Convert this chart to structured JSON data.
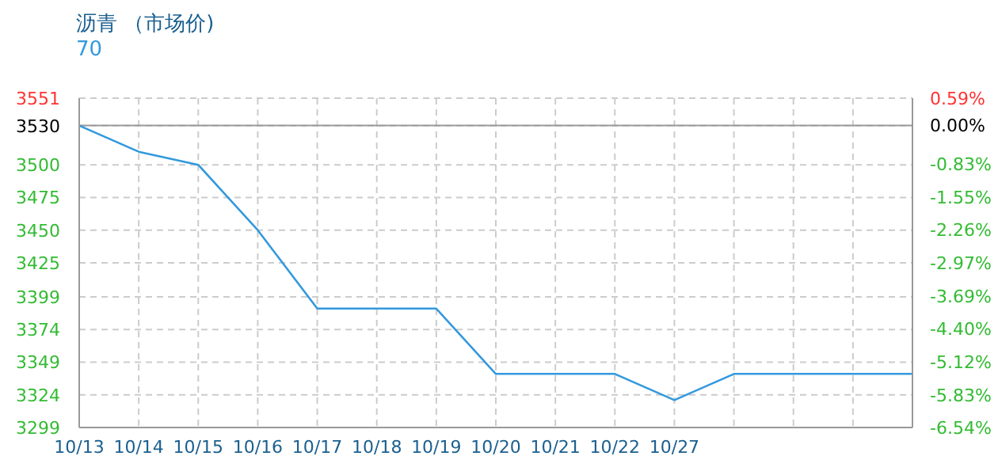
{
  "chart_data": {
    "type": "line",
    "title": "沥青 （市场价)",
    "categories": [
      "10/13",
      "10/14",
      "10/15",
      "10/16",
      "10/17",
      "10/18",
      "10/19",
      "10/20",
      "10/21",
      "10/22",
      "10/27",
      null,
      null,
      null,
      null
    ],
    "series": [
      {
        "name": "70",
        "color": "#3399dd",
        "values": [
          3530,
          3510,
          3500,
          3450,
          3390,
          3390,
          3390,
          3340,
          3340,
          3340,
          3320,
          3340,
          3340,
          3340,
          3340
        ]
      }
    ],
    "ylim": [
      3299,
      3551
    ],
    "yticks": [
      3299,
      3324,
      3349,
      3374,
      3399,
      3425,
      3450,
      3475,
      3500,
      3530,
      3551
    ],
    "y2lim": [
      -6.54,
      0.59
    ],
    "y2ticks": [
      {
        "value": -6.54,
        "label": "-6.54%"
      },
      {
        "value": -5.83,
        "label": "-5.83%"
      },
      {
        "value": -5.12,
        "label": "-5.12%"
      },
      {
        "value": -4.4,
        "label": "-4.40%"
      },
      {
        "value": -3.69,
        "label": "-3.69%"
      },
      {
        "value": -2.97,
        "label": "-2.97%"
      },
      {
        "value": -2.26,
        "label": "-2.26%"
      },
      {
        "value": -1.55,
        "label": "-1.55%"
      },
      {
        "value": -0.83,
        "label": "-0.83%"
      },
      {
        "value": 0,
        "label": "0.00%"
      },
      {
        "value": 0.59,
        "label": "0.59%"
      }
    ],
    "ref_lines": [
      {
        "axis": "y2",
        "value": 0,
        "color": "#999999"
      }
    ],
    "grid": true,
    "legend": "top left",
    "marker": "none",
    "line_style": "solid"
  }
}
